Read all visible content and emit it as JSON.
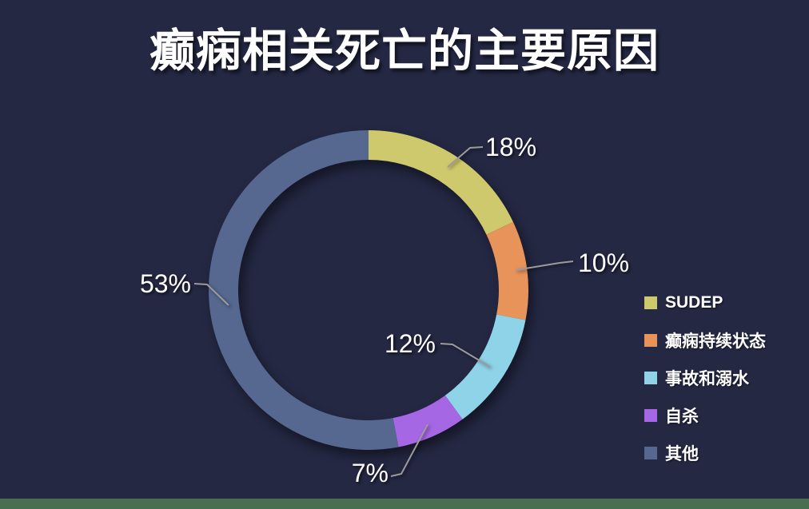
{
  "page": {
    "background_color": "#242843",
    "bottom_bar_color": "#4a6e50"
  },
  "title": "癫痫相关死亡的主要原因",
  "chart_data": {
    "type": "pie",
    "donut": true,
    "title": "癫痫相关死亡的主要原因",
    "categories": [
      "SUDEP",
      "癫痫持续状态",
      "事故和溺水",
      "自杀",
      "其他"
    ],
    "values": [
      18,
      10,
      12,
      7,
      53
    ],
    "labels": [
      "18%",
      "10%",
      "12%",
      "7%",
      "53%"
    ],
    "unit": "%",
    "colors": [
      "#cfc96e",
      "#e8935a",
      "#8fd3e8",
      "#a667e4",
      "#56688f"
    ],
    "start_angle_deg": 0,
    "direction": "clockwise",
    "legend_position": "right",
    "label_color": "#ffffff",
    "leader_line_color": "#9b9b9b"
  }
}
